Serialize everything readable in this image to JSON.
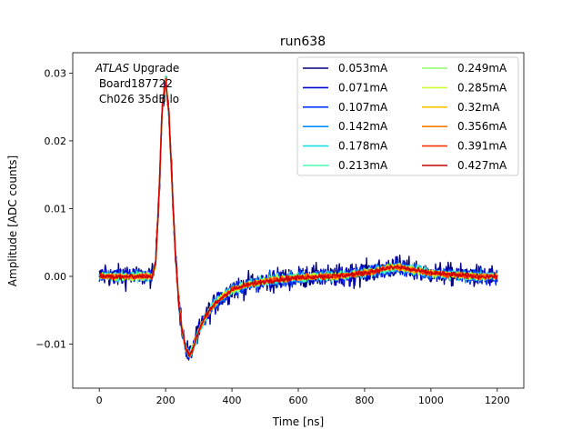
{
  "chart_data": {
    "type": "line",
    "title": "run638",
    "xlabel": "Time [ns]",
    "ylabel": "Amplitude [ADC counts]",
    "xlim": [
      -80,
      1280
    ],
    "ylim": [
      -0.0165,
      0.033
    ],
    "xticks": [
      0,
      200,
      400,
      600,
      800,
      1000,
      1200
    ],
    "xtick_labels": [
      "0",
      "200",
      "400",
      "600",
      "800",
      "1000",
      "1200"
    ],
    "yticks": [
      -0.01,
      0.0,
      0.01,
      0.02,
      0.03
    ],
    "ytick_labels": [
      "−0.01",
      "0.00",
      "0.01",
      "0.02",
      "0.03"
    ],
    "grid": false,
    "legend_position": "top-right",
    "legend_columns": 2,
    "annotation": {
      "italic": "ATLAS",
      "line1_rest": " Upgrade",
      "line2": " Board187722",
      "line3": " Ch026 35dB lo"
    },
    "pulse_shape": {
      "t": [
        0,
        160,
        170,
        180,
        190,
        200,
        210,
        220,
        230,
        240,
        250,
        260,
        270,
        280,
        290,
        300,
        320,
        340,
        360,
        380,
        400,
        450,
        500,
        550,
        600,
        650,
        700,
        750,
        800,
        850,
        880,
        900,
        920,
        950,
        1000,
        1050,
        1100,
        1150,
        1200
      ],
      "y": [
        0.0,
        0.0,
        0.002,
        0.012,
        0.025,
        0.029,
        0.024,
        0.013,
        0.003,
        -0.004,
        -0.008,
        -0.0105,
        -0.0115,
        -0.011,
        -0.0095,
        -0.008,
        -0.006,
        -0.0045,
        -0.0035,
        -0.0027,
        -0.002,
        -0.0012,
        -0.0007,
        -0.0004,
        -0.0002,
        0.0,
        0.0,
        0.0002,
        0.0005,
        0.001,
        0.0013,
        0.0014,
        0.0012,
        0.0009,
        0.0005,
        0.0003,
        0.0001,
        0.0,
        0.0
      ]
    },
    "series": [
      {
        "name": "0.053mA",
        "color": "#00007f",
        "noise": 0.0016
      },
      {
        "name": "0.071mA",
        "color": "#0000d0",
        "noise": 0.0013
      },
      {
        "name": "0.107mA",
        "color": "#003cff",
        "noise": 0.001
      },
      {
        "name": "0.142mA",
        "color": "#0090ff",
        "noise": 0.0008
      },
      {
        "name": "0.178mA",
        "color": "#14e0e3",
        "noise": 0.0007
      },
      {
        "name": "0.213mA",
        "color": "#4affad",
        "noise": 0.0006
      },
      {
        "name": "0.249mA",
        "color": "#8cff6b",
        "noise": 0.0005
      },
      {
        "name": "0.285mA",
        "color": "#c7ff30",
        "noise": 0.0005
      },
      {
        "name": "0.32mA",
        "color": "#ffc400",
        "noise": 0.0004
      },
      {
        "name": "0.356mA",
        "color": "#ff7a00",
        "noise": 0.0004
      },
      {
        "name": "0.391mA",
        "color": "#ff3300",
        "noise": 0.0004
      },
      {
        "name": "0.427mA",
        "color": "#cc0000",
        "noise": 0.0004
      }
    ]
  }
}
